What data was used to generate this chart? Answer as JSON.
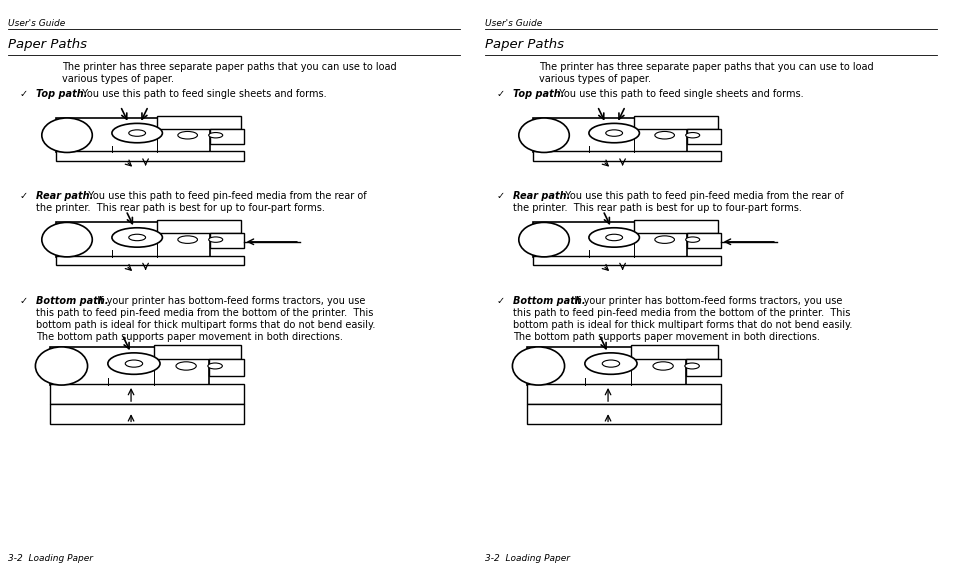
{
  "bg_color": "#ffffff",
  "header_text": "User's Guide",
  "section_title": "Paper Paths",
  "footer_text": "3-2  Loading Paper",
  "intro_line1": "The printer has three separate paper paths that you can use to load",
  "intro_line2": "various types of paper.",
  "b1_bold": "Top path.",
  "b1_rest": "  You use this path to feed single sheets and forms.",
  "b2_bold": "Rear path.",
  "b2_rest": "  You use this path to feed pin-feed media from the rear of",
  "b2_rest2": "the printer.  This rear path is best for up to four-part forms.",
  "b3_bold": "Bottom path.",
  "b3_rest": "  If your printer has bottom-feed forms tractors, you use",
  "b3_rest2": "this path to feed pin-feed media from the bottom of the printer.  This",
  "b3_rest3": "bottom path is ideal for thick multipart forms that do not bend easily.",
  "b3_rest4": "The bottom path supports paper movement in both directions.",
  "text_color": "#000000",
  "divider_color": "#000000"
}
